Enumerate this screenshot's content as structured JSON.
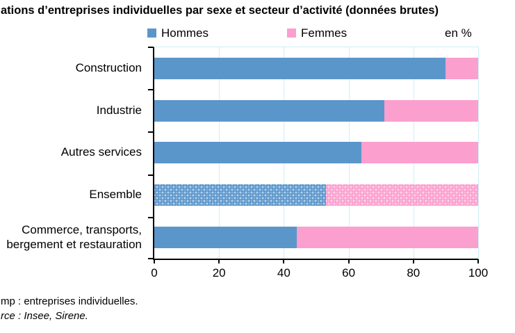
{
  "title": "ations d’entreprises individuelles par sexe et secteur d’activité (données brutes)",
  "legend": {
    "items": [
      {
        "label": "Hommes"
      },
      {
        "label": "Femmes"
      }
    ],
    "unit_label": "en %"
  },
  "footnotes": {
    "line1": "mp : entreprises individuelles.",
    "line2": "rce : Insee, Sirene."
  },
  "colors": {
    "hommes": "#5B96CB",
    "femmes": "#FB9FCE",
    "hommes_light": "#B7D3EC",
    "femmes_light": "#FDD6EA",
    "grid": "#CDEFF8",
    "axis": "#000000"
  },
  "chart_data": {
    "type": "bar",
    "orientation": "horizontal",
    "stacked": true,
    "title": "ations d’entreprises individuelles par sexe et secteur d’activité (données brutes)",
    "unit": "en %",
    "categories": [
      [
        "Construction"
      ],
      [
        "Industrie"
      ],
      [
        "Autres services"
      ],
      [
        "Ensemble"
      ],
      [
        "Commerce, transports,",
        "bergement et restauration"
      ]
    ],
    "series": [
      {
        "name": "Hommes",
        "values": [
          90,
          71,
          64,
          53,
          44
        ]
      },
      {
        "name": "Femmes",
        "values": [
          10,
          29,
          36,
          47,
          56
        ]
      }
    ],
    "pattern_category_index": 3,
    "x_ticks": [
      0,
      20,
      40,
      60,
      80,
      100
    ],
    "xlim": [
      0,
      100
    ],
    "grid": "vertical-light-cyan",
    "legend_position": "top"
  }
}
